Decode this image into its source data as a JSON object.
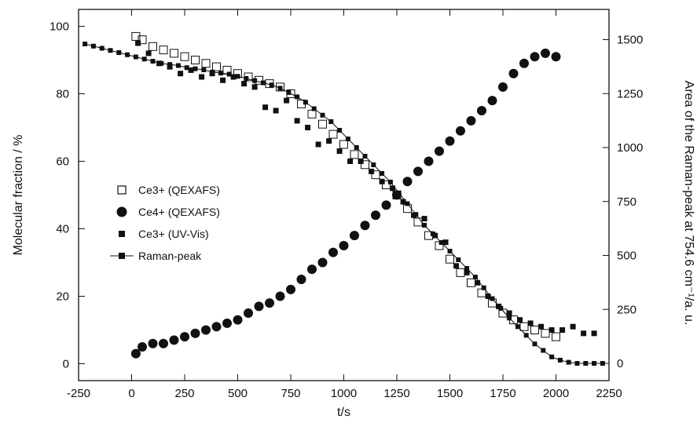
{
  "chart_data": {
    "type": "scatter",
    "title": "",
    "xlabel": "t/s",
    "ylabel": "Molecular fraction / %",
    "y2label": "Area of the Raman-peak at 754.6 cm⁻¹/a. u.",
    "xlim": [
      -250,
      2250
    ],
    "ylim": [
      -5,
      105
    ],
    "y2lim": [
      -80,
      1640
    ],
    "x_ticks": [
      -250,
      0,
      250,
      500,
      750,
      1000,
      1250,
      1500,
      1750,
      2000,
      2250
    ],
    "y_ticks": [
      0,
      20,
      40,
      60,
      80,
      100
    ],
    "y2_ticks": [
      0,
      250,
      500,
      750,
      1000,
      1250,
      1500
    ],
    "grid": false,
    "legend_position": "center-left",
    "series": [
      {
        "name": "Ce3+ (QEXAFS)",
        "marker": "open-square",
        "axis": "left",
        "color": "#111111",
        "x": [
          20,
          50,
          100,
          150,
          200,
          250,
          300,
          350,
          400,
          450,
          500,
          550,
          600,
          650,
          700,
          750,
          800,
          850,
          900,
          950,
          1000,
          1050,
          1100,
          1150,
          1200,
          1250,
          1300,
          1350,
          1400,
          1450,
          1500,
          1550,
          1600,
          1650,
          1700,
          1750,
          1800,
          1850,
          1900,
          1950,
          2000
        ],
        "values": [
          97,
          96,
          94,
          93,
          92,
          91,
          90,
          89,
          88,
          87,
          86,
          85,
          84,
          83,
          82,
          80,
          77,
          74,
          71,
          68,
          65,
          62,
          59,
          56,
          53,
          50,
          46,
          42,
          38,
          35,
          31,
          27,
          24,
          21,
          18,
          15,
          13,
          11,
          10,
          9,
          8
        ]
      },
      {
        "name": "Ce4+ (QEXAFS)",
        "marker": "filled-circle",
        "axis": "left",
        "color": "#111111",
        "x": [
          20,
          50,
          100,
          150,
          200,
          250,
          300,
          350,
          400,
          450,
          500,
          550,
          600,
          650,
          700,
          750,
          800,
          850,
          900,
          950,
          1000,
          1050,
          1100,
          1150,
          1200,
          1250,
          1300,
          1350,
          1400,
          1450,
          1500,
          1550,
          1600,
          1650,
          1700,
          1750,
          1800,
          1850,
          1900,
          1950,
          2000
        ],
        "values": [
          3,
          5,
          6,
          6,
          7,
          8,
          9,
          10,
          11,
          12,
          13,
          15,
          17,
          18,
          20,
          22,
          25,
          28,
          30,
          33,
          35,
          38,
          41,
          44,
          47,
          50,
          54,
          57,
          60,
          63,
          66,
          69,
          72,
          75,
          78,
          82,
          86,
          89,
          91,
          92,
          91
        ]
      },
      {
        "name": "Ce3+ (UV-Vis)",
        "marker": "filled-square",
        "axis": "left",
        "color": "#111111",
        "x": [
          30,
          80,
          130,
          180,
          230,
          280,
          330,
          380,
          430,
          480,
          530,
          580,
          630,
          680,
          730,
          780,
          830,
          880,
          930,
          980,
          1030,
          1080,
          1130,
          1180,
          1230,
          1280,
          1330,
          1380,
          1430,
          1480,
          1530,
          1580,
          1630,
          1680,
          1730,
          1780,
          1830,
          1880,
          1930,
          1980,
          2030,
          2080,
          2130,
          2180
        ],
        "values": [
          95,
          92,
          89,
          88,
          86,
          87,
          85,
          86,
          84,
          85,
          83,
          82,
          76,
          75,
          78,
          72,
          70,
          65,
          66,
          63,
          60,
          60,
          57,
          54,
          52,
          48,
          44,
          43,
          38,
          36,
          29,
          27,
          24,
          20,
          17,
          15,
          13,
          12,
          11,
          10,
          10,
          11,
          9,
          9
        ]
      },
      {
        "name": "Raman-peak",
        "marker": "filled-square-line",
        "axis": "right",
        "color": "#111111",
        "x": [
          -220,
          -180,
          -140,
          -100,
          -60,
          -20,
          20,
          60,
          100,
          140,
          180,
          220,
          260,
          300,
          340,
          380,
          420,
          460,
          500,
          540,
          580,
          620,
          660,
          700,
          740,
          780,
          820,
          860,
          900,
          940,
          980,
          1020,
          1060,
          1100,
          1140,
          1180,
          1220,
          1260,
          1300,
          1340,
          1380,
          1420,
          1460,
          1500,
          1540,
          1580,
          1620,
          1660,
          1700,
          1740,
          1780,
          1820,
          1860,
          1900,
          1940,
          1980,
          2020,
          2060,
          2100,
          2140,
          2180,
          2220
        ],
        "values": [
          1480,
          1470,
          1460,
          1450,
          1440,
          1430,
          1420,
          1410,
          1400,
          1390,
          1385,
          1380,
          1370,
          1365,
          1360,
          1350,
          1345,
          1340,
          1330,
          1320,
          1310,
          1300,
          1290,
          1275,
          1255,
          1235,
          1210,
          1180,
          1150,
          1120,
          1080,
          1040,
          1000,
          960,
          920,
          880,
          840,
          790,
          740,
          690,
          640,
          600,
          560,
          520,
          480,
          440,
          400,
          350,
          300,
          255,
          210,
          170,
          130,
          90,
          60,
          30,
          15,
          5,
          0,
          0,
          0,
          0
        ]
      }
    ]
  }
}
